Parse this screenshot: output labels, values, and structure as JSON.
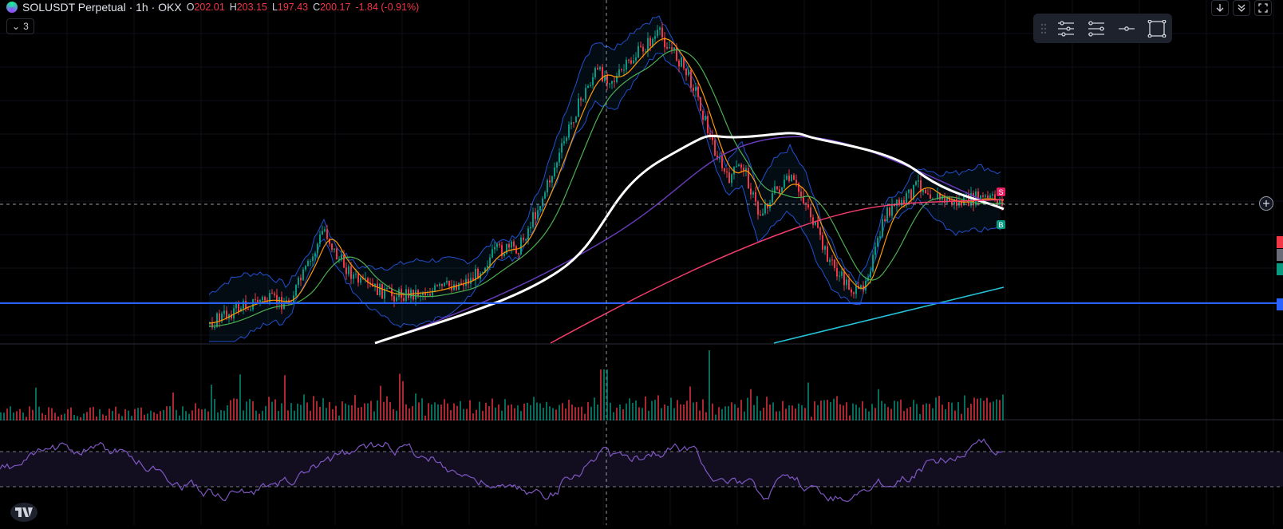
{
  "header": {
    "symbol": "SOLUSDT Perpetual · 1h · OKX",
    "ohlc": [
      {
        "label": "O",
        "value": "202.01"
      },
      {
        "label": "H",
        "value": "203.15"
      },
      {
        "label": "L",
        "value": "197.43"
      },
      {
        "label": "C",
        "value": "200.17"
      }
    ],
    "change": "-1.84 (-0.91%)"
  },
  "indicators_toggle": {
    "count": "3"
  },
  "toolbar": {
    "buttons": [
      {
        "icon": "object-tree-icon"
      },
      {
        "icon": "settings-lines-icon"
      },
      {
        "icon": "horizontal-line-icon"
      },
      {
        "icon": "rectangle-icon"
      }
    ]
  },
  "signals": [
    {
      "label": "S",
      "color": "#e91e63"
    },
    {
      "label": "B",
      "color": "#089981"
    }
  ],
  "colors": {
    "background": "#000000",
    "up": "#089981",
    "down": "#f23645",
    "accent_blue": "#2962ff",
    "rsi": "#7e57c2"
  }
}
